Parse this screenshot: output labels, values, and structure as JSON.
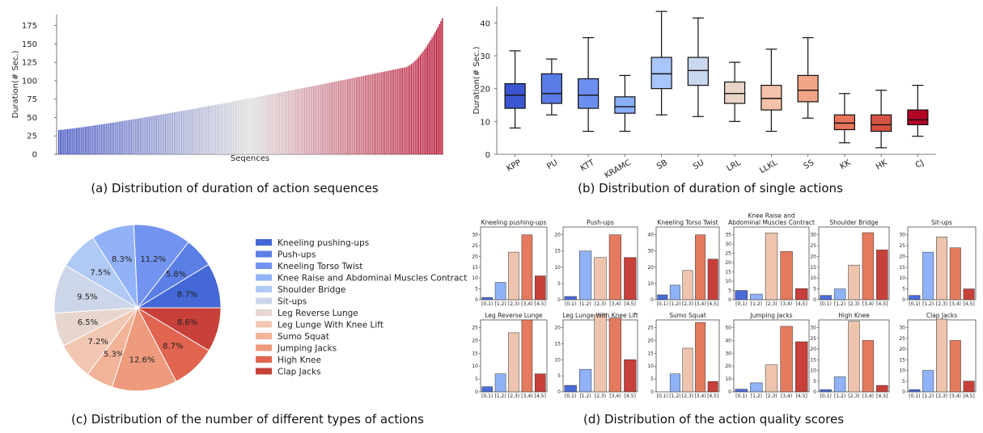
{
  "panels": {
    "a": {
      "caption": "(a) Distribution of duration of action sequences",
      "chart_data": {
        "type": "bar",
        "ylabel": "Duration(# Sec.)",
        "xlabel": "Seqences",
        "yticks": [
          0,
          25,
          50,
          75,
          100,
          125,
          150,
          175
        ],
        "ylim": [
          0,
          190
        ],
        "n_bars": 260,
        "min": 33,
        "max": 185,
        "color_low": "#3b4cc0",
        "color_mid": "#dddcdc",
        "color_high": "#b40426"
      }
    },
    "b": {
      "caption": "(b) Distribution of duration of single actions",
      "chart_data": {
        "type": "box",
        "ylabel": "Duration(# Sec.)",
        "yticks": [
          0,
          10,
          20,
          30,
          40
        ],
        "ylim": [
          0,
          45
        ],
        "categories": [
          "KPP",
          "PU",
          "KTT",
          "KRAMC",
          "SB",
          "SU",
          "LRL",
          "LLKL",
          "SS",
          "KK",
          "HK",
          "CJ"
        ],
        "boxes": [
          {
            "min": 8,
            "q1": 14,
            "median": 18,
            "q3": 21.5,
            "max": 31.5,
            "color": "#3b56d0"
          },
          {
            "min": 12,
            "q1": 15.5,
            "median": 18.5,
            "q3": 24.5,
            "max": 29,
            "color": "#5a7ae6"
          },
          {
            "min": 7,
            "q1": 14,
            "median": 18,
            "q3": 23,
            "max": 35.5,
            "color": "#6b8fef"
          },
          {
            "min": 7,
            "q1": 12.5,
            "median": 14.5,
            "q3": 17.5,
            "max": 24,
            "color": "#8aaff8"
          },
          {
            "min": 12,
            "q1": 20,
            "median": 24.5,
            "q3": 29.5,
            "max": 43.5,
            "color": "#a9c6fb"
          },
          {
            "min": 11.5,
            "q1": 21,
            "median": 25.5,
            "q3": 29.5,
            "max": 41.5,
            "color": "#c9d7ef"
          },
          {
            "min": 10,
            "q1": 15.5,
            "median": 18.5,
            "q3": 22,
            "max": 28,
            "color": "#ead4c8"
          },
          {
            "min": 7,
            "q1": 13.5,
            "median": 17,
            "q3": 21,
            "max": 32,
            "color": "#f4c2aa"
          },
          {
            "min": 11,
            "q1": 16,
            "median": 19.5,
            "q3": 24,
            "max": 35.5,
            "color": "#f2a486"
          },
          {
            "min": 3.5,
            "q1": 7.5,
            "median": 9.5,
            "q3": 12,
            "max": 18.5,
            "color": "#e7745b"
          },
          {
            "min": 2,
            "q1": 7,
            "median": 9,
            "q3": 12,
            "max": 19.5,
            "color": "#d65244"
          },
          {
            "min": 5.5,
            "q1": 9,
            "median": 10.5,
            "q3": 13.5,
            "max": 21,
            "color": "#b40426"
          }
        ]
      }
    },
    "c": {
      "caption": "(c) Distribution of the number of different types of actions",
      "chart_data": {
        "type": "pie",
        "legend_position": "right",
        "slices": [
          {
            "name": "Kneeling pushing-ups",
            "value": 8.7,
            "label": "8.7%",
            "color": "#4468d6"
          },
          {
            "name": "Push-ups",
            "value": 5.8,
            "label": "5.8%",
            "color": "#5c7fe6"
          },
          {
            "name": "Kneeling Torso Twist",
            "value": 11.2,
            "label": "11.2%",
            "color": "#7293f0"
          },
          {
            "name": "Knee Raise and Abdominal Muscles Contract",
            "value": 8.3,
            "label": "8.3%",
            "color": "#92b2f7"
          },
          {
            "name": "Shoulder Bridge",
            "value": 7.5,
            "label": "7.5%",
            "color": "#b0c9f5"
          },
          {
            "name": "Sit-ups",
            "value": 9.5,
            "label": "9.5%",
            "color": "#ccd6e8"
          },
          {
            "name": "Leg Reverse Lunge",
            "value": 6.5,
            "label": "6.5%",
            "color": "#e6d6cd"
          },
          {
            "name": "Leg Lunge With Knee Lift",
            "value": 7.2,
            "label": "7.2%",
            "color": "#f1c7b3"
          },
          {
            "name": "Sumo Squat",
            "value": 5.3,
            "label": "5.3%",
            "color": "#f3b398"
          },
          {
            "name": "Jumping Jacks",
            "value": 12.6,
            "label": "12.6%",
            "color": "#ee9a7c"
          },
          {
            "name": "High Knee",
            "value": 8.7,
            "label": "8.7%",
            "color": "#e0644f"
          },
          {
            "name": "Clap Jacks",
            "value": 8.6,
            "label": "8.6%",
            "color": "#c7403a"
          }
        ]
      }
    },
    "d": {
      "caption": "(d) Distribution of the action quality scores",
      "chart_data": {
        "type": "bar",
        "categories": [
          "[0,1)",
          "[1,2)",
          "[2,3)",
          "[3,4)",
          "[4,5]"
        ],
        "bar_colors": [
          "#4a6bd8",
          "#8fb2f8",
          "#eec4ae",
          "#e47a5e",
          "#c7403a"
        ],
        "subplots": [
          {
            "title": "Kneeling pushing-ups",
            "ymax": 30,
            "yticks": [
              0,
              5,
              10,
              15,
              20,
              25,
              30
            ],
            "values": [
              1,
              8,
              22,
              30,
              11
            ]
          },
          {
            "title": "Push-ups",
            "ymax": 20,
            "yticks": [
              0,
              5,
              10,
              15,
              20
            ],
            "values": [
              1,
              15,
              13,
              20,
              13
            ]
          },
          {
            "title": "Kneeling Torso Twist",
            "ymax": 40,
            "yticks": [
              0,
              10,
              20,
              30,
              40
            ],
            "values": [
              3,
              9,
              18,
              40,
              25
            ]
          },
          {
            "title": "Knee Raise and\nAbdominal Muscles Contract",
            "ymax": 35,
            "yticks": [
              0,
              5,
              10,
              15,
              20,
              25,
              30,
              35
            ],
            "values": [
              5,
              3,
              36,
              26,
              6
            ]
          },
          {
            "title": "Shoulder Bridge",
            "ymax": 30,
            "yticks": [
              0,
              5,
              10,
              15,
              20,
              25,
              30
            ],
            "values": [
              2,
              5,
              16,
              31,
              23
            ]
          },
          {
            "title": "Sit-ups",
            "ymax": 30,
            "yticks": [
              0,
              5,
              10,
              15,
              20,
              25,
              30
            ],
            "values": [
              2,
              22,
              29,
              24,
              5
            ]
          },
          {
            "title": "Leg Reverse Lunge",
            "ymax": 25,
            "yticks": [
              0,
              5,
              10,
              15,
              20,
              25
            ],
            "values": [
              2,
              7,
              23,
              28,
              7
            ]
          },
          {
            "title": "Leg Lunge With Knee Lift",
            "ymax": 20,
            "yticks": [
              0,
              5,
              10,
              15,
              20
            ],
            "values": [
              2,
              7,
              24,
              23,
              10
            ]
          },
          {
            "title": "Sumo Squat",
            "ymax": 25,
            "yticks": [
              0,
              5,
              10,
              15,
              20,
              25
            ],
            "values": [
              0,
              7,
              17,
              27,
              4
            ]
          },
          {
            "title": "Jumping Jacks",
            "ymax": 50,
            "yticks": [
              0,
              10,
              20,
              30,
              40,
              50
            ],
            "values": [
              2,
              7,
              21,
              51,
              39
            ]
          },
          {
            "title": "High Knee",
            "ymax": 30,
            "yticks": [
              0,
              5,
              10,
              15,
              20,
              25,
              30
            ],
            "values": [
              1,
              7,
              33,
              24,
              3
            ]
          },
          {
            "title": "Clap Jacks",
            "ymax": 30,
            "yticks": [
              0,
              5,
              10,
              15,
              20,
              25,
              30
            ],
            "values": [
              1,
              10,
              34,
              24,
              5
            ]
          }
        ]
      }
    }
  }
}
